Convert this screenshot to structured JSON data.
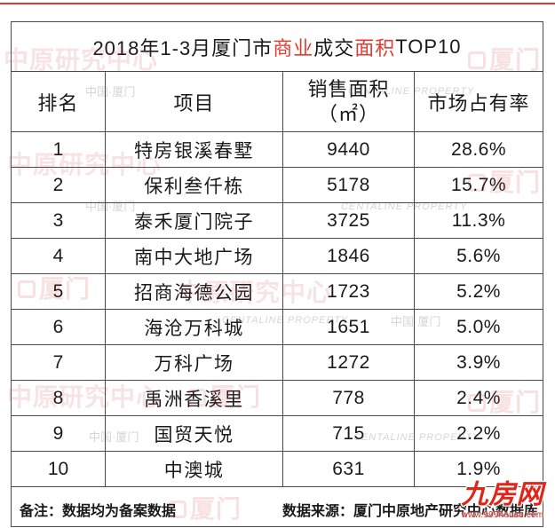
{
  "colors": {
    "text": "#1a1a1a",
    "highlight": "#e53a30",
    "grid_line": "#4a4a4a",
    "accent_line": "#d63c34",
    "watermark": "#c83232",
    "logo": "#e0251b"
  },
  "chart_data": {
    "type": "table",
    "title": "2018年1-3月厦门市商业成交面积TOP10",
    "title_highlights": [
      "商业",
      "面积"
    ],
    "columns": [
      {
        "label": "排名"
      },
      {
        "label": "项目"
      },
      {
        "label": "销售面积",
        "unit": "（㎡）"
      },
      {
        "label": "市场占有率"
      }
    ],
    "rows": [
      {
        "rank": 1,
        "project": "特房银溪春墅",
        "area": 9440,
        "share": "28.6%"
      },
      {
        "rank": 2,
        "project": "保利叁仟栋",
        "area": 5178,
        "share": "15.7%"
      },
      {
        "rank": 3,
        "project": "泰禾厦门院子",
        "area": 3725,
        "share": "11.3%"
      },
      {
        "rank": 4,
        "project": "南中大地广场",
        "area": 1846,
        "share": "5.6%"
      },
      {
        "rank": 5,
        "project": "招商海德公园",
        "area": 1723,
        "share": "5.2%"
      },
      {
        "rank": 6,
        "project": "海沧万科城",
        "area": 1651,
        "share": "5.0%"
      },
      {
        "rank": 7,
        "project": "万科广场",
        "area": 1272,
        "share": "3.9%"
      },
      {
        "rank": 8,
        "project": "禹洲香溪里",
        "area": 778,
        "share": "2.4%"
      },
      {
        "rank": 9,
        "project": "国贸天悦",
        "area": 715,
        "share": "2.2%"
      },
      {
        "rank": 10,
        "project": "中澳城",
        "area": 631,
        "share": "1.9%"
      }
    ],
    "note": "备注：数据均为备案数据",
    "source": "数据来源：厦门中原地产研究中心数据库"
  },
  "watermark": {
    "research_center": "中原研究中心",
    "city": "厦门",
    "brand_en": "CENTALINE PROPERTY",
    "location": "中国·厦门",
    "logo_icon": "centaline-logo-icon"
  },
  "logo": {
    "name": "九房网",
    "url": "www.999house.com"
  }
}
